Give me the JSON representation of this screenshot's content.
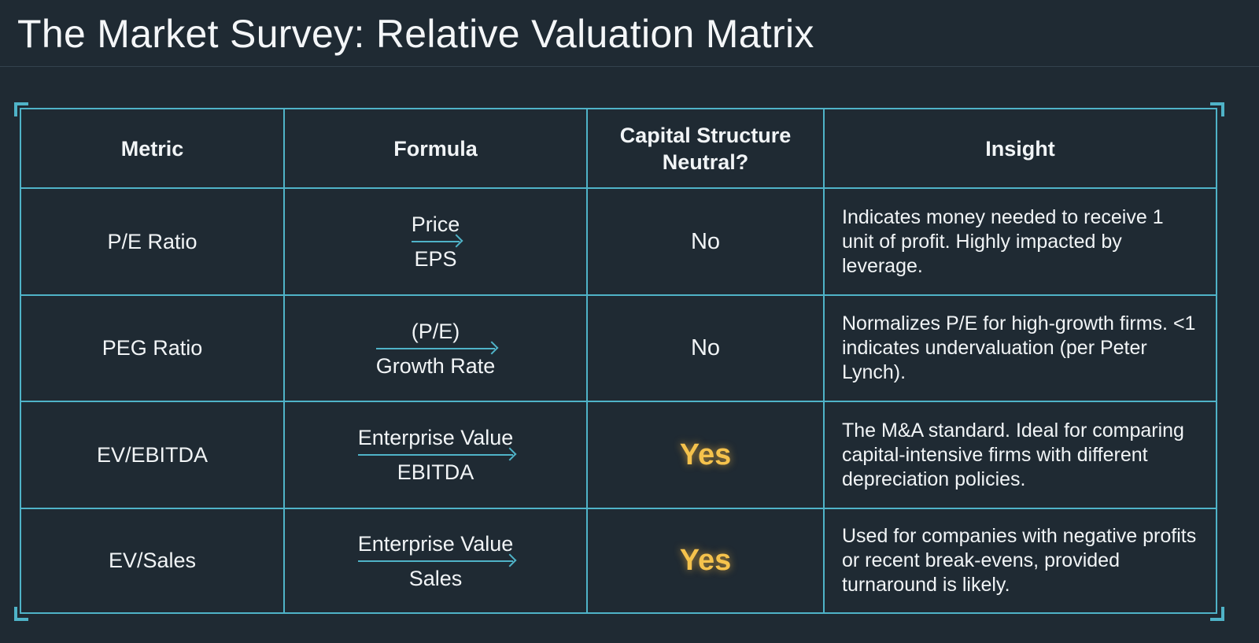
{
  "title": "The Market Survey: Relative Valuation Matrix",
  "table": {
    "headers": [
      "Metric",
      "Formula",
      "Capital Structure Neutral?",
      "Insight"
    ],
    "rows": [
      {
        "metric": "P/E Ratio",
        "formula": {
          "numerator": "Price",
          "denominator": "EPS"
        },
        "neutral": "No",
        "insight": "Indicates money needed to receive 1 unit of profit. Highly impacted by leverage."
      },
      {
        "metric": "PEG Ratio",
        "formula": {
          "numerator": "(P/E)",
          "denominator": "Growth Rate"
        },
        "neutral": "No",
        "insight": "Normalizes P/E for high-growth firms. <1 indicates undervaluation (per Peter Lynch)."
      },
      {
        "metric": "EV/EBITDA",
        "formula": {
          "numerator": "Enterprise Value",
          "denominator": "EBITDA"
        },
        "neutral": "Yes",
        "insight": "The M&A standard. Ideal for comparing capital-intensive firms with different depreciation policies."
      },
      {
        "metric": "EV/Sales",
        "formula": {
          "numerator": "Enterprise Value",
          "denominator": "Sales"
        },
        "neutral": "Yes",
        "insight": "Used for companies with negative profits or recent break-evens, provided turnaround is likely."
      }
    ]
  }
}
